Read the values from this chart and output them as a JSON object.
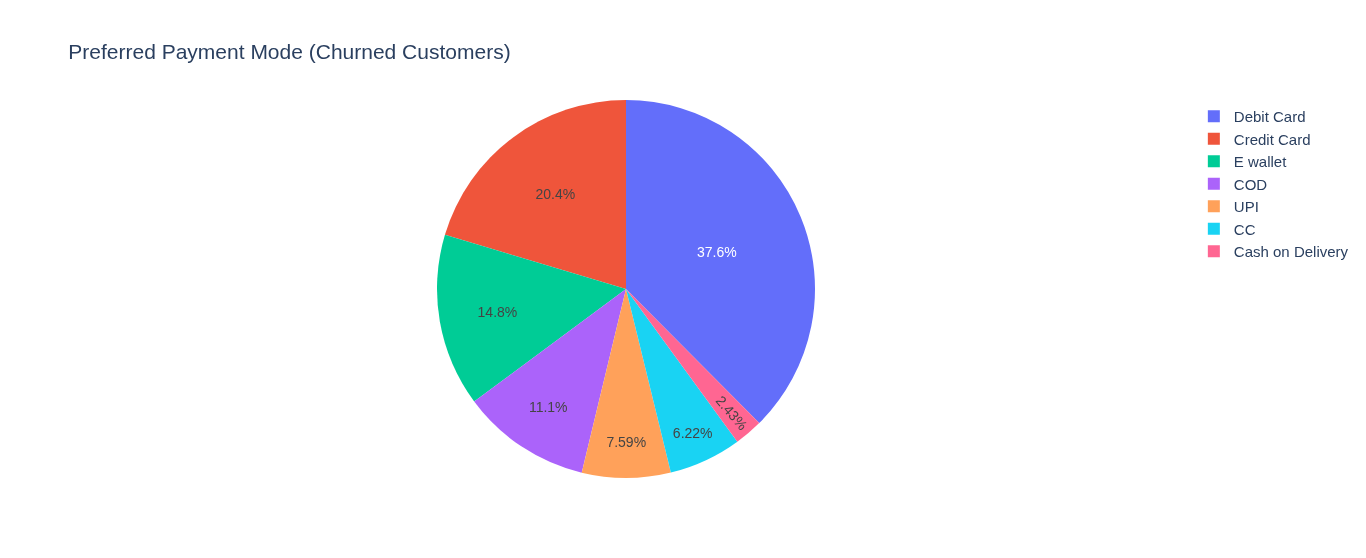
{
  "chart_data": {
    "type": "pie",
    "title": "Preferred Payment Mode (Churned Customers)",
    "categories": [
      "Debit Card",
      "Credit Card",
      "E wallet",
      "COD",
      "UPI",
      "CC",
      "Cash on Delivery"
    ],
    "values": [
      37.6,
      20.4,
      14.8,
      11.1,
      7.59,
      6.22,
      2.43
    ],
    "value_labels": [
      "37.6%",
      "20.4%",
      "14.8%",
      "11.1%",
      "7.59%",
      "6.22%",
      "2.43%"
    ],
    "colors": [
      "#636efa",
      "#ef553b",
      "#00cc96",
      "#ab63fa",
      "#ffa15a",
      "#19d3f3",
      "#ff6692"
    ],
    "legend": "top right"
  }
}
